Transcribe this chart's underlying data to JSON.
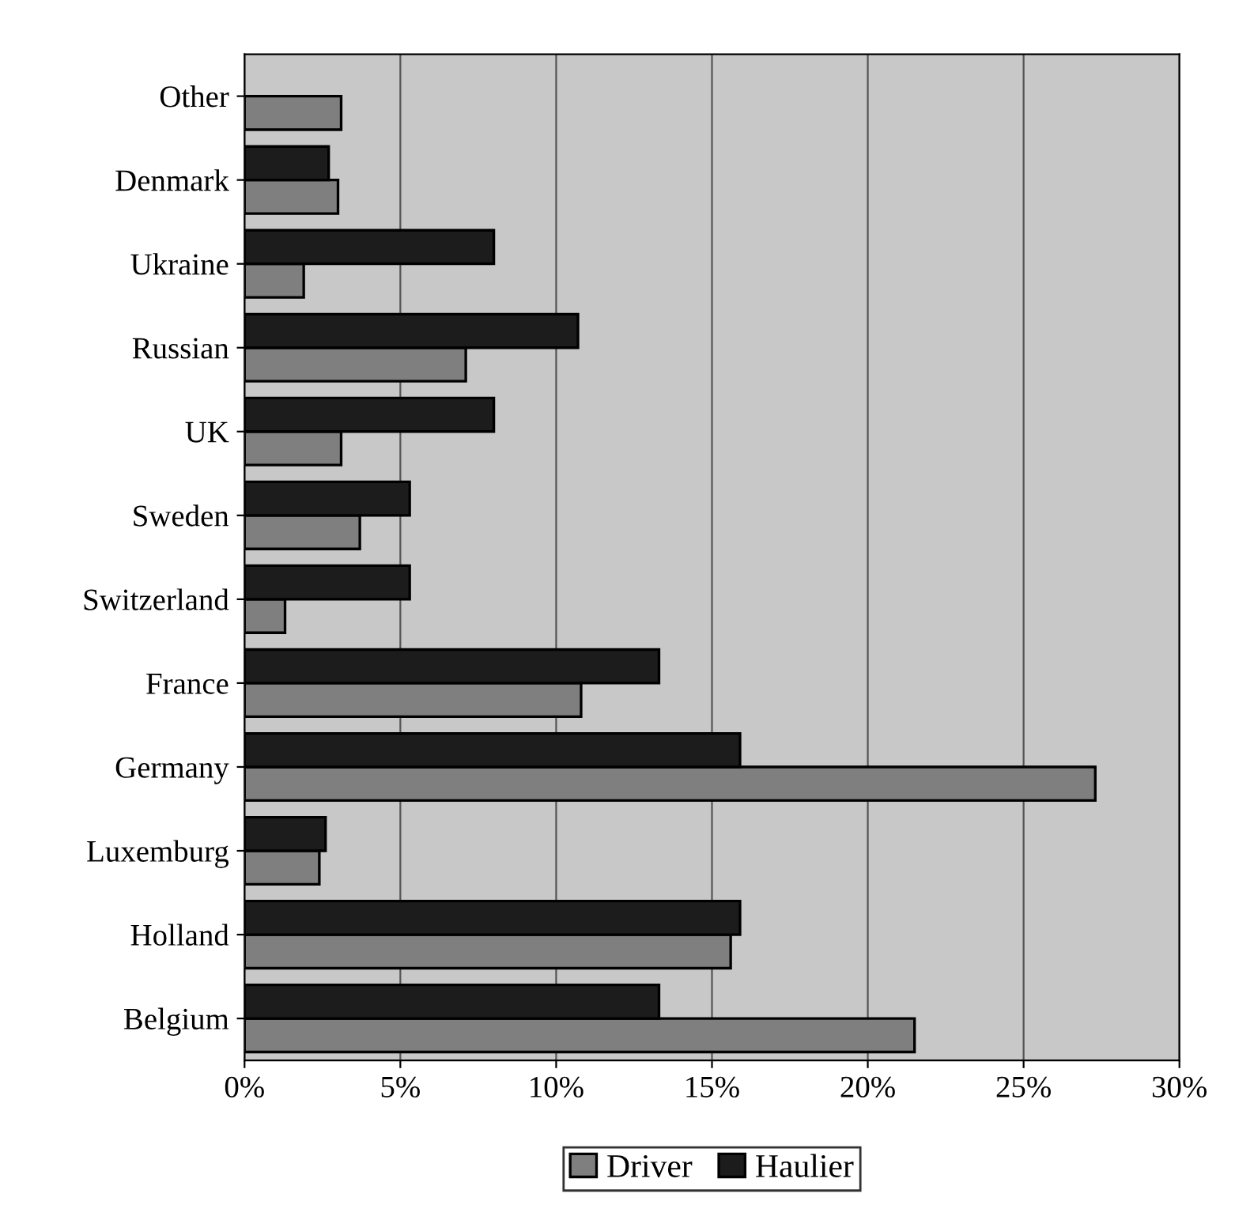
{
  "chart_data": {
    "type": "bar",
    "orientation": "horizontal",
    "categories": [
      "Other",
      "Denmark",
      "Ukraine",
      "Russian",
      "UK",
      "Sweden",
      "Switzerland",
      "France",
      "Germany",
      "Luxemburg",
      "Holland",
      "Belgium"
    ],
    "series": [
      {
        "name": "Driver",
        "color": "#7f7f7f",
        "values": [
          3.1,
          3.0,
          1.9,
          7.1,
          3.1,
          3.7,
          1.3,
          10.8,
          27.3,
          2.4,
          15.6,
          21.5
        ]
      },
      {
        "name": "Haulier",
        "color": "#1c1c1c",
        "values": [
          null,
          2.7,
          8.0,
          10.7,
          8.0,
          5.3,
          5.3,
          13.3,
          15.9,
          2.6,
          15.9,
          13.3
        ]
      }
    ],
    "xlim": [
      0,
      30
    ],
    "xticks": [
      {
        "value": 0,
        "label": "0%"
      },
      {
        "value": 5,
        "label": "5%"
      },
      {
        "value": 10,
        "label": "10%"
      },
      {
        "value": 15,
        "label": "15%"
      },
      {
        "value": 20,
        "label": "20%"
      },
      {
        "value": 25,
        "label": "25%"
      },
      {
        "value": 30,
        "label": "30%"
      }
    ],
    "grid": "x",
    "legend": "bottom"
  }
}
